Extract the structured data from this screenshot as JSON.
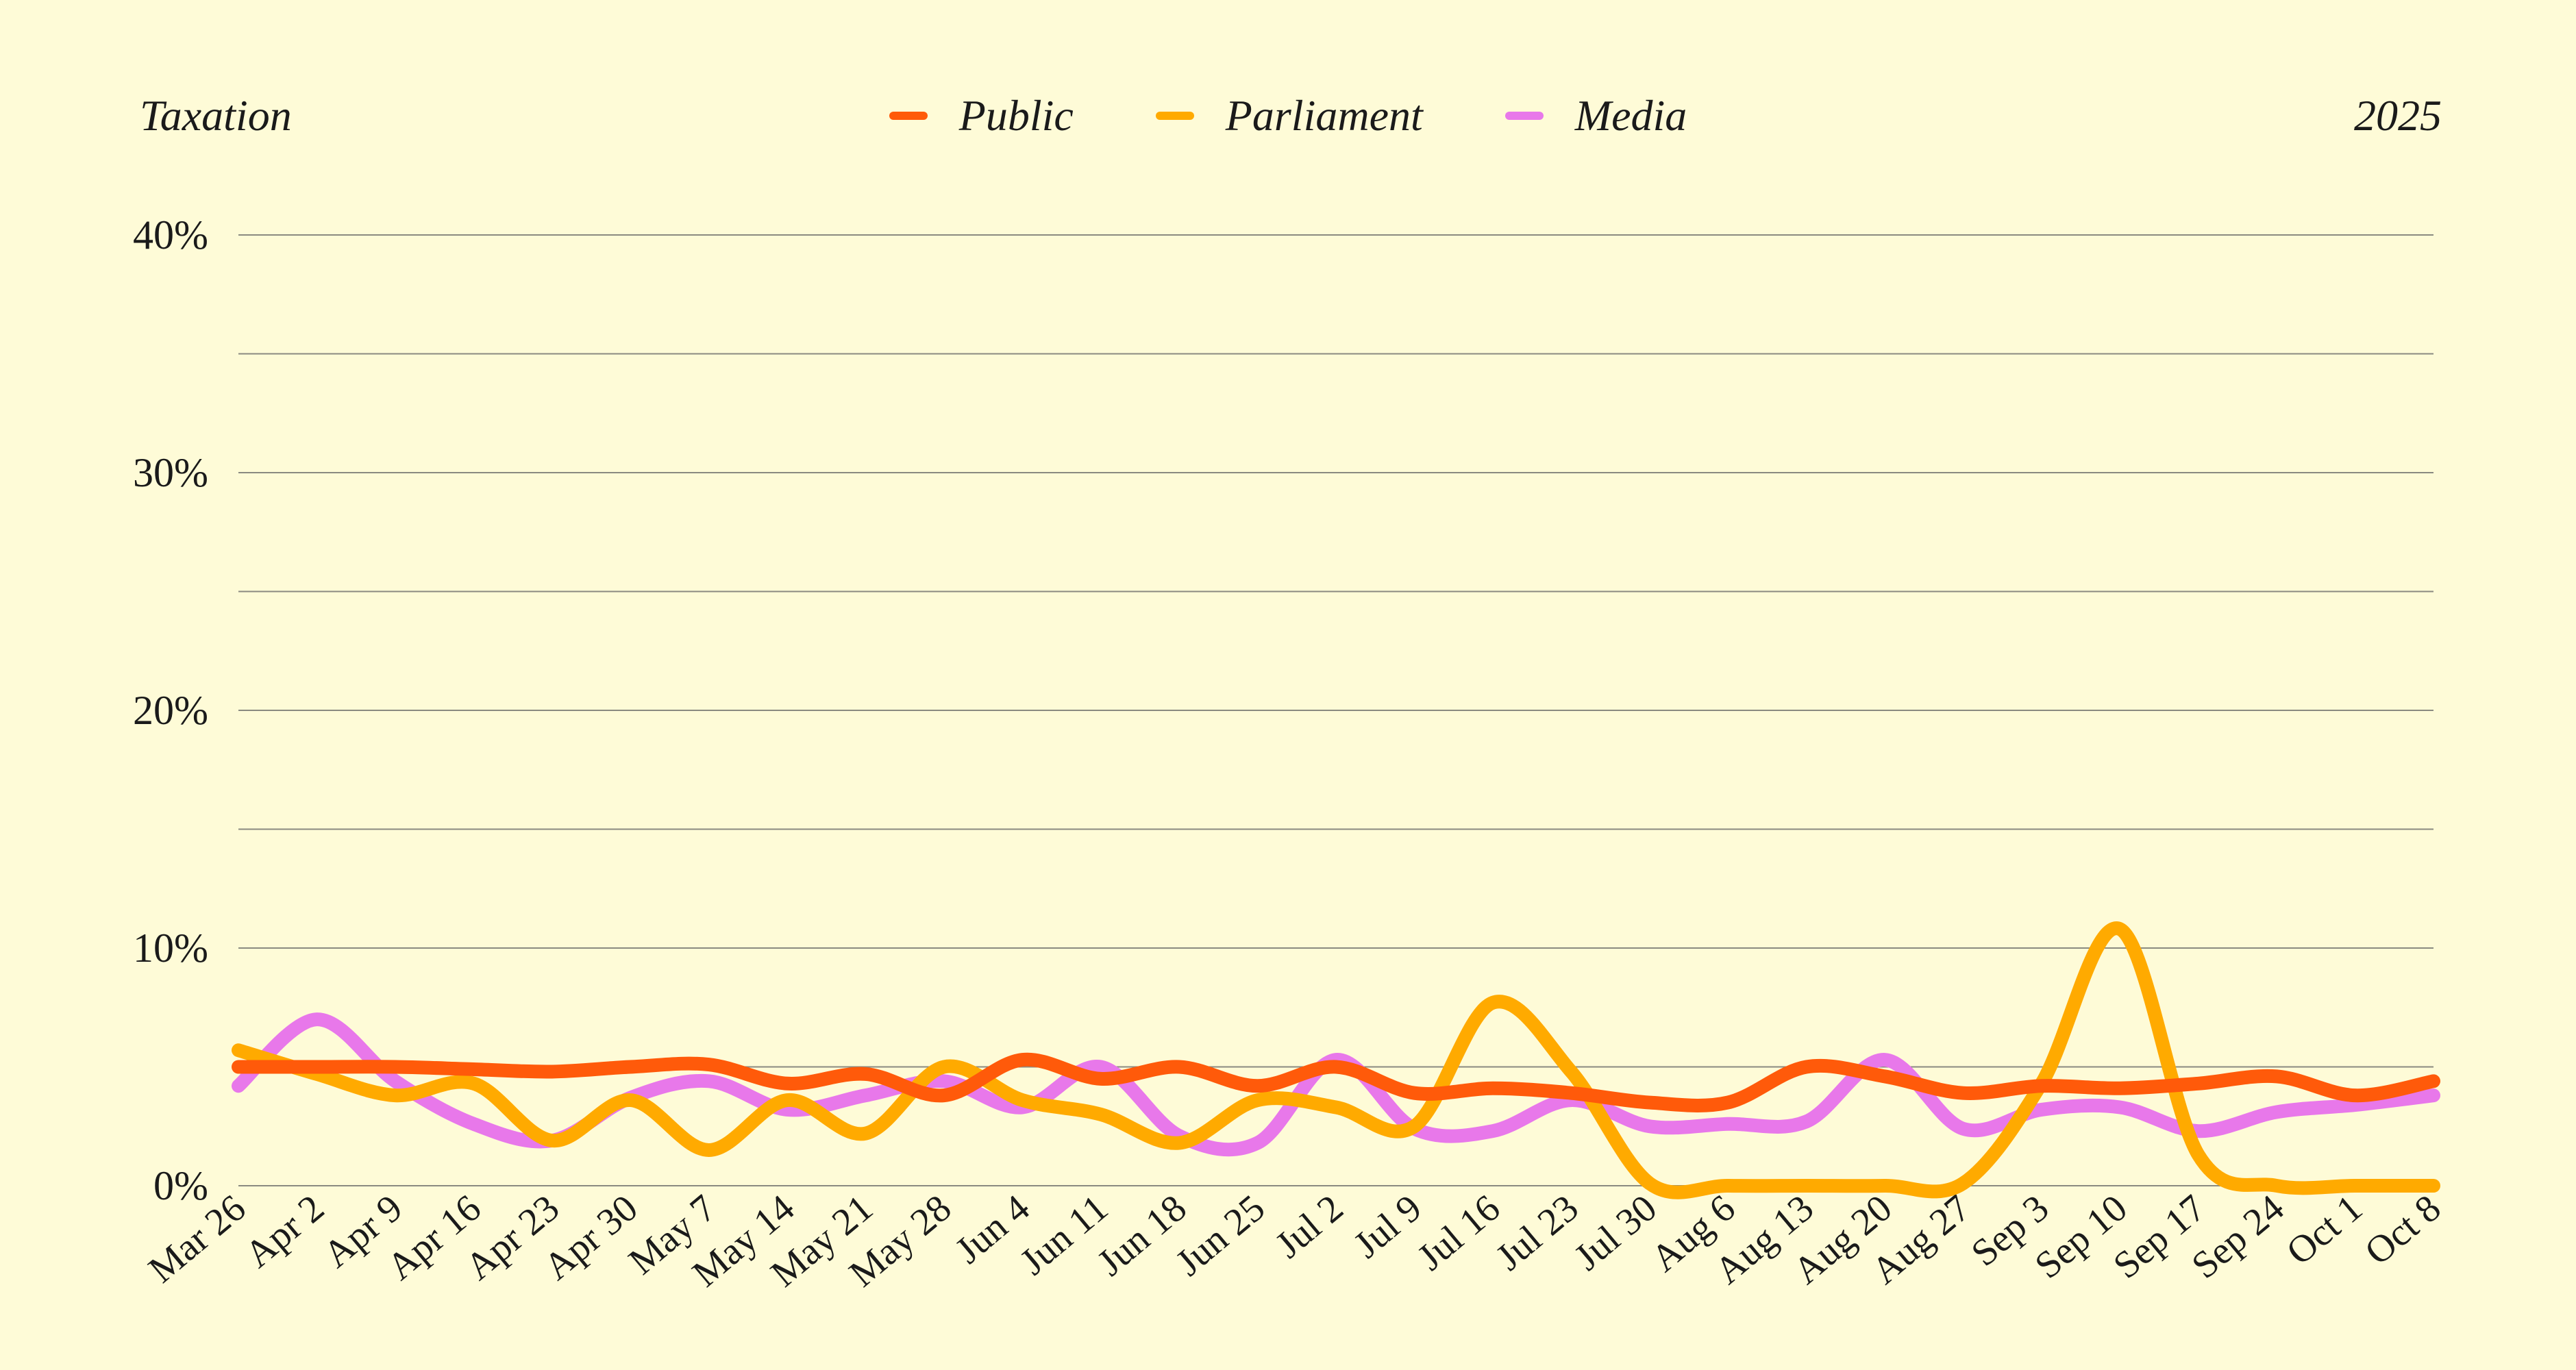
{
  "header": {
    "topic": "Taxation",
    "year": "2025"
  },
  "colors": {
    "background": "#fefbd7",
    "grid": "#8a8a80"
  },
  "chart_data": {
    "type": "line",
    "x": [
      "Mar 26",
      "Apr 2",
      "Apr 9",
      "Apr 16",
      "Apr 23",
      "Apr 30",
      "May 7",
      "May 14",
      "May 21",
      "May 28",
      "Jun 4",
      "Jun 11",
      "Jun 18",
      "Jun 25",
      "Jul 2",
      "Jul 9",
      "Jul 16",
      "Jul 23",
      "Jul 30",
      "Aug 6",
      "Aug 13",
      "Aug 20",
      "Aug 27",
      "Sep 3",
      "Sep 10",
      "Sep 17",
      "Sep 24",
      "Oct 1",
      "Oct 8"
    ],
    "ylim": [
      0,
      40
    ],
    "yticks": [
      "0%",
      "10%",
      "20%",
      "30%",
      "40%"
    ],
    "ytick_values": [
      0,
      10,
      20,
      30,
      40
    ],
    "grid_values": [
      0,
      5,
      10,
      15,
      20,
      25,
      30,
      35,
      40
    ],
    "legend_position": "top-center",
    "series": [
      {
        "name": "Public",
        "color": "#ff5a0a",
        "values": [
          5.0,
          5.0,
          5.0,
          4.9,
          4.8,
          5.0,
          5.1,
          4.3,
          4.7,
          3.8,
          5.3,
          4.5,
          5.0,
          4.2,
          5.0,
          3.9,
          4.1,
          3.9,
          3.5,
          3.5,
          5.0,
          4.6,
          3.9,
          4.2,
          4.1,
          4.3,
          4.6,
          3.8,
          4.4
        ]
      },
      {
        "name": "Parliament",
        "color": "#ffaa00",
        "values": [
          5.7,
          4.7,
          3.8,
          4.3,
          1.9,
          3.6,
          1.5,
          3.6,
          2.2,
          5.0,
          3.6,
          3.0,
          1.8,
          3.6,
          3.3,
          2.5,
          7.7,
          4.8,
          0.1,
          0.0,
          0.0,
          0.0,
          0.1,
          4.3,
          10.8,
          1.3,
          0.0,
          0.0,
          0.0
        ]
      },
      {
        "name": "Media",
        "color": "#e878ea",
        "values": [
          4.2,
          7.0,
          4.4,
          2.6,
          1.9,
          3.7,
          4.4,
          3.2,
          3.8,
          4.4,
          3.3,
          5.0,
          2.1,
          1.8,
          5.3,
          2.4,
          2.3,
          3.6,
          2.5,
          2.6,
          2.7,
          5.3,
          2.4,
          3.2,
          3.3,
          2.3,
          3.1,
          3.4,
          3.8
        ]
      }
    ]
  }
}
